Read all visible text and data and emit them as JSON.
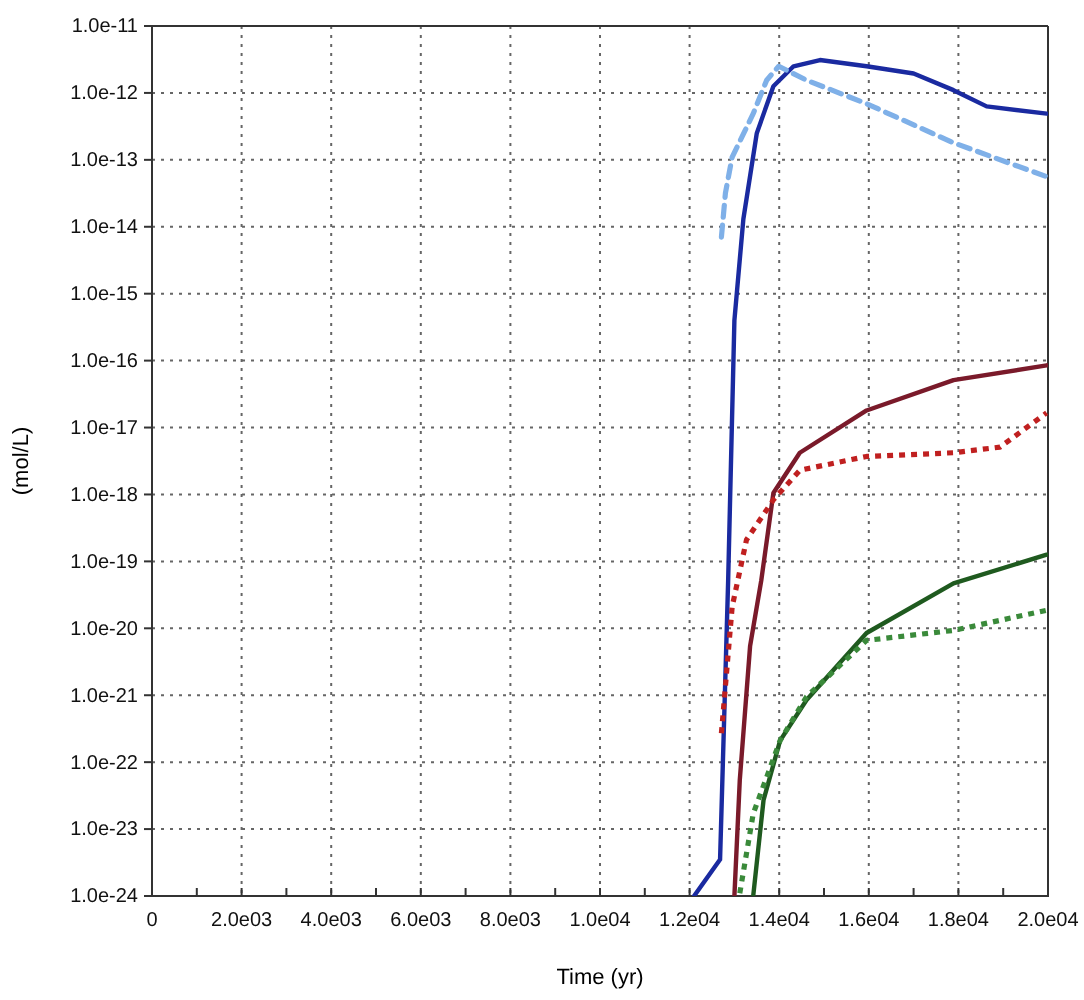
{
  "chart_data": {
    "type": "line",
    "xlabel": "Time (yr)",
    "ylabel": "(mol/L)",
    "log": "y",
    "grid": true,
    "marker": "none",
    "xlim": [
      0,
      20000
    ],
    "ylim": [
      1e-24,
      1e-11
    ],
    "xticks": [
      {
        "value": 0,
        "label": "0"
      },
      {
        "value": 1000,
        "label": null
      },
      {
        "value": 2000,
        "label": "2.0e03"
      },
      {
        "value": 3000,
        "label": null
      },
      {
        "value": 4000,
        "label": "4.0e03"
      },
      {
        "value": 5000,
        "label": null
      },
      {
        "value": 6000,
        "label": "6.0e03"
      },
      {
        "value": 7000,
        "label": null
      },
      {
        "value": 8000,
        "label": "8.0e03"
      },
      {
        "value": 9000,
        "label": null
      },
      {
        "value": 10000,
        "label": "1.0e04"
      },
      {
        "value": 11000,
        "label": null
      },
      {
        "value": 12000,
        "label": "1.2e04"
      },
      {
        "value": 13000,
        "label": null
      },
      {
        "value": 14000,
        "label": "1.4e04"
      },
      {
        "value": 15000,
        "label": null
      },
      {
        "value": 16000,
        "label": "1.6e04"
      },
      {
        "value": 17000,
        "label": null
      },
      {
        "value": 18000,
        "label": "1.8e04"
      },
      {
        "value": 19000,
        "label": null
      },
      {
        "value": 20000,
        "label": "2.0e04"
      }
    ],
    "yticks": [
      {
        "value": 1e-24,
        "label": "1.0e-24"
      },
      {
        "value": 1e-23,
        "label": "1.0e-23"
      },
      {
        "value": 1e-22,
        "label": "1.0e-22"
      },
      {
        "value": 1e-21,
        "label": "1.0e-21"
      },
      {
        "value": 1e-20,
        "label": "1.0e-20"
      },
      {
        "value": 1e-19,
        "label": "1.0e-19"
      },
      {
        "value": 1e-18,
        "label": "1.0e-18"
      },
      {
        "value": 1e-17,
        "label": "1.0e-17"
      },
      {
        "value": 1e-16,
        "label": "1.0e-16"
      },
      {
        "value": 1e-15,
        "label": "1.0e-15"
      },
      {
        "value": 1e-14,
        "label": "1.0e-14"
      },
      {
        "value": 1e-13,
        "label": "1.0e-13"
      },
      {
        "value": 1e-12,
        "label": "1.0e-12"
      },
      {
        "value": 1e-11,
        "label": "1.0e-11"
      }
    ],
    "series": [
      {
        "color": "#1a2aa0",
        "line_style": "solid",
        "x": [
          12100,
          12680,
          12860,
          13000,
          13200,
          13500,
          13870,
          14320,
          14910,
          15950,
          17000,
          17890,
          18630,
          19970
        ],
        "values": [
          1e-24,
          3.5e-24,
          5e-20,
          4e-16,
          1.3e-14,
          2.5e-13,
          1.26e-12,
          2.5e-12,
          3.1e-12,
          2.5e-12,
          1.95e-12,
          1.1e-12,
          6.3e-13,
          4.9e-13
        ]
      },
      {
        "color": "#7fb0e8",
        "line_style": "dashed",
        "x": [
          12710,
          12800,
          12950,
          13420,
          13720,
          13990,
          14610,
          15950,
          17890,
          19970
        ],
        "values": [
          7e-15,
          3.2e-14,
          1.1e-13,
          4.9e-13,
          1.55e-12,
          2.5e-12,
          1.55e-12,
          6.9e-13,
          1.8e-13,
          5.6e-14
        ]
      },
      {
        "color": "#7a1a2a",
        "line_style": "solid",
        "x": [
          13000,
          13120,
          13350,
          13600,
          13870,
          14460,
          15950,
          17890,
          19970
        ],
        "values": [
          1e-24,
          5.4e-23,
          5.4e-21,
          5.2e-20,
          1.05e-18,
          4.2e-18,
          1.8e-17,
          5.1e-17,
          8.5e-17
        ]
      },
      {
        "color": "#c02020",
        "line_style": "dotted",
        "x": [
          12710,
          12950,
          13270,
          13870,
          14460,
          15950,
          17890,
          18930,
          19970
        ],
        "values": [
          2.7e-22,
          2.1e-20,
          2.1e-19,
          8.3e-19,
          2.3e-18,
          3.7e-18,
          4.2e-18,
          5.1e-18,
          1.66e-17
        ]
      },
      {
        "color": "#1f5a1f",
        "line_style": "solid",
        "x": [
          13420,
          13650,
          14020,
          14610,
          15950,
          17890,
          19970
        ],
        "values": [
          1e-24,
          2.7e-23,
          2.1e-22,
          8.5e-22,
          8.5e-21,
          4.7e-20,
          1.26e-19
        ]
      },
      {
        "color": "#3a8a3a",
        "line_style": "dotted",
        "x": [
          13120,
          13420,
          14020,
          14610,
          15950,
          17890,
          19970
        ],
        "values": [
          1.1e-24,
          1.7e-23,
          2.1e-22,
          9.5e-22,
          6.6e-21,
          9.3e-21,
          1.86e-20
        ]
      }
    ]
  }
}
